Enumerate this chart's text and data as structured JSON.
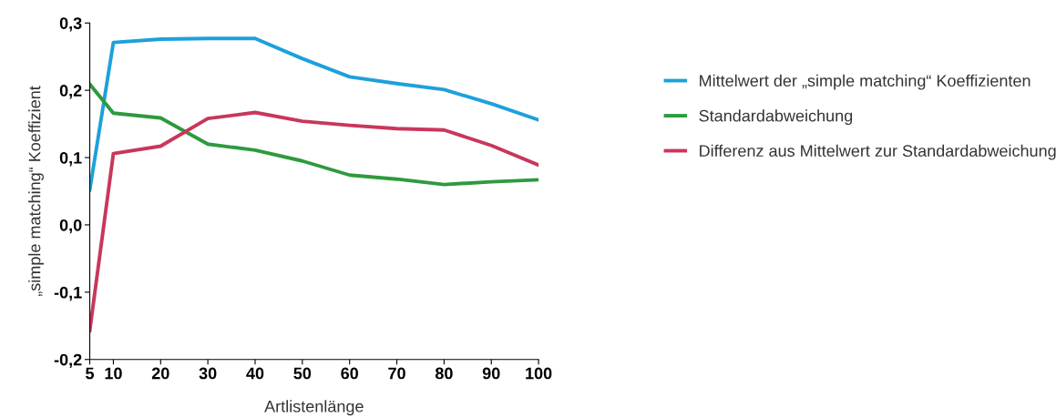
{
  "chart_data": {
    "type": "line",
    "xlabel": "Artlistenlänge",
    "ylabel": "„simple matching“ Koeffizient",
    "x": [
      5,
      10,
      20,
      30,
      40,
      50,
      60,
      70,
      80,
      90,
      100
    ],
    "series": [
      {
        "name": "Mittelwert der „simple matching“ Koeffizienten",
        "color": "#1ea0dc",
        "values": [
          0.052,
          0.271,
          0.276,
          0.277,
          0.277,
          0.247,
          0.22,
          0.21,
          0.201,
          0.18,
          0.156
        ]
      },
      {
        "name": "Standardabweichung",
        "color": "#2e9a3e",
        "values": [
          0.209,
          0.166,
          0.159,
          0.12,
          0.111,
          0.095,
          0.074,
          0.068,
          0.06,
          0.064,
          0.067
        ]
      },
      {
        "name": "Differenz aus Mittelwert zur Standardabweichung",
        "color": "#c8375a",
        "values": [
          -0.157,
          0.106,
          0.117,
          0.158,
          0.167,
          0.154,
          0.148,
          0.143,
          0.141,
          0.118,
          0.089
        ]
      }
    ],
    "xlim": [
      5,
      100
    ],
    "xticks": [
      5,
      10,
      20,
      30,
      40,
      50,
      60,
      70,
      80,
      90,
      100
    ],
    "ylim": [
      -0.2,
      0.3
    ],
    "yticks": [
      {
        "value": -0.2,
        "label": "-0,2"
      },
      {
        "value": -0.1,
        "label": "-0,1"
      },
      {
        "value": 0.0,
        "label": "0,0"
      },
      {
        "value": 0.1,
        "label": "0,1"
      },
      {
        "value": 0.2,
        "label": "0,2"
      },
      {
        "value": 0.3,
        "label": "0,3"
      }
    ],
    "grid": false,
    "legend": "right",
    "marker": "none",
    "line_style": "solid"
  }
}
